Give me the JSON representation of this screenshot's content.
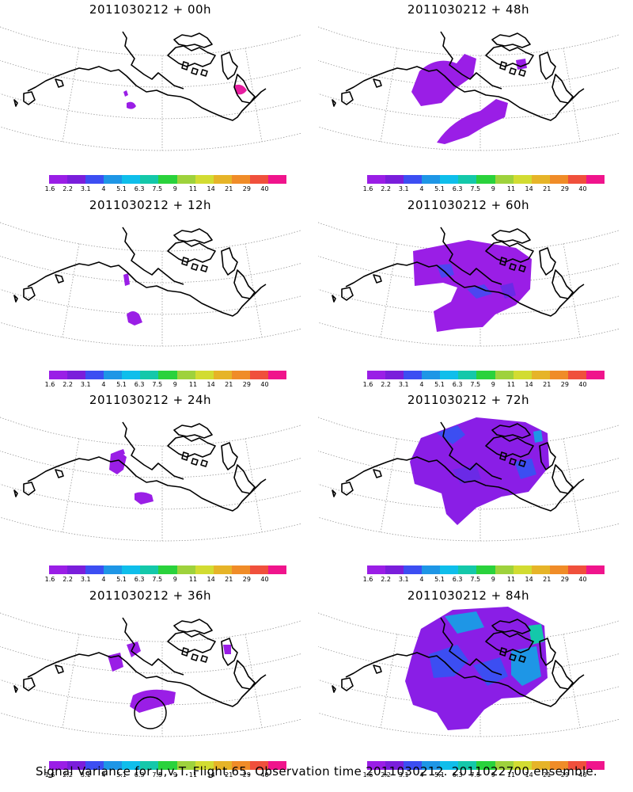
{
  "panels": [
    {
      "title": "2011030212 + 00h"
    },
    {
      "title": "2011030212 + 48h"
    },
    {
      "title": "2011030212 + 12h"
    },
    {
      "title": "2011030212 + 60h"
    },
    {
      "title": "2011030212 + 24h"
    },
    {
      "title": "2011030212 + 72h"
    },
    {
      "title": "2011030212 + 36h"
    },
    {
      "title": "2011030212 + 84h"
    }
  ],
  "colorbar": {
    "colors": [
      "#9a1ee6",
      "#7a1edb",
      "#3c4ef2",
      "#1e96e6",
      "#0fbeeb",
      "#14c8aa",
      "#2ad23c",
      "#9ed23c",
      "#d2dc32",
      "#e6b428",
      "#f08c28",
      "#f0503c",
      "#f0148c"
    ],
    "labels": [
      "1.6",
      "2.2",
      "3.1",
      "4",
      "5.1",
      "6.3",
      "7.5",
      "9",
      "11",
      "14",
      "21",
      "29",
      "40"
    ]
  },
  "caption": "Signal Variance for u,v,T. Flight 65. Observation time 2011030212. 2011022700 ensemble."
}
